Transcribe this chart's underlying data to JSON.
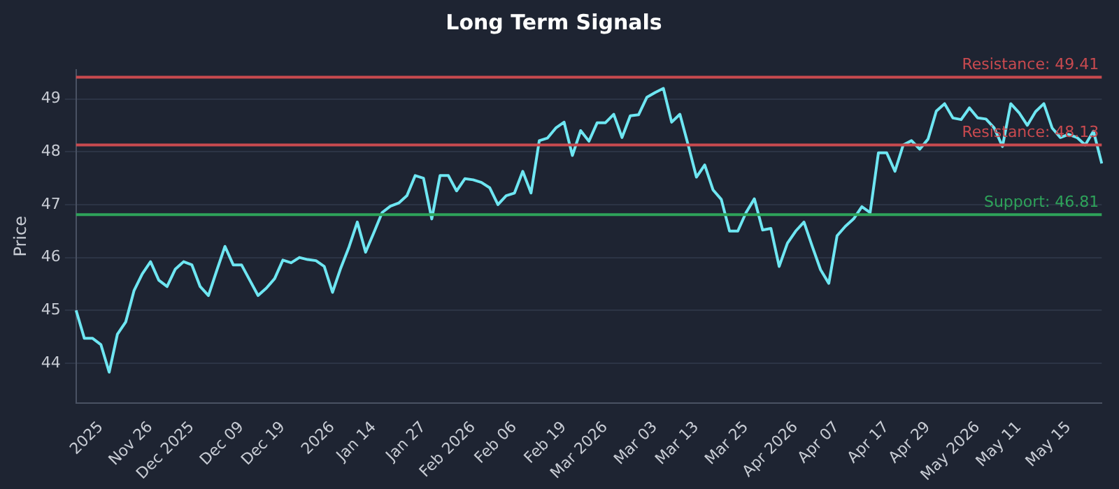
{
  "chart_data": {
    "type": "line",
    "title": "Long Term Signals",
    "ylabel": "Price",
    "categories": [
      null,
      null,
      null,
      "2025",
      null,
      null,
      null,
      null,
      null,
      "Nov 26",
      null,
      null,
      null,
      null,
      "Dec 2025",
      null,
      null,
      null,
      null,
      null,
      "Dec 09",
      null,
      null,
      null,
      null,
      "Dec 19",
      null,
      null,
      null,
      null,
      null,
      "2026",
      null,
      null,
      null,
      null,
      "Jan 14",
      null,
      null,
      null,
      null,
      null,
      "Jan 27",
      null,
      null,
      null,
      null,
      null,
      "Feb 2026",
      null,
      null,
      null,
      null,
      "Feb 06",
      null,
      null,
      null,
      null,
      null,
      "Feb 19",
      null,
      null,
      null,
      null,
      "Mar 2026",
      null,
      null,
      null,
      null,
      null,
      "Mar 03",
      null,
      null,
      null,
      null,
      "Mar 13",
      null,
      null,
      null,
      null,
      null,
      "Mar 25",
      null,
      null,
      null,
      null,
      null,
      "Apr 2026",
      null,
      null,
      null,
      null,
      "Apr 07",
      null,
      null,
      null,
      null,
      null,
      "Apr 17",
      null,
      null,
      null,
      null,
      "Apr 29",
      null,
      null,
      null,
      null,
      null,
      "May 2026",
      null,
      null,
      null,
      null,
      "May 11",
      null,
      null,
      null,
      null,
      null,
      "May 15",
      null,
      null,
      null,
      null
    ],
    "series": [
      {
        "color": "#6ee6f2",
        "values": [
          45.0,
          44.47,
          44.47,
          44.35,
          43.83,
          44.55,
          44.78,
          45.37,
          45.69,
          45.92,
          45.57,
          45.45,
          45.78,
          45.92,
          45.86,
          45.45,
          45.28,
          45.75,
          46.21,
          45.86,
          45.86,
          45.57,
          45.28,
          45.42,
          45.6,
          45.95,
          45.9,
          46.0,
          45.96,
          45.94,
          45.83,
          45.34,
          45.8,
          46.2,
          46.67,
          46.1,
          46.47,
          46.85,
          46.97,
          47.03,
          47.17,
          47.55,
          47.5,
          46.73,
          47.55,
          47.55,
          47.26,
          47.49,
          47.47,
          47.42,
          47.32,
          47.0,
          47.17,
          47.22,
          47.63,
          47.22,
          48.21,
          48.26,
          48.45,
          48.56,
          47.93,
          48.4,
          48.2,
          48.55,
          48.55,
          48.71,
          48.27,
          48.68,
          48.7,
          49.03,
          49.12,
          49.2,
          48.56,
          48.71,
          48.13,
          47.52,
          47.75,
          47.28,
          47.1,
          46.5,
          46.5,
          46.85,
          47.11,
          46.52,
          46.55,
          45.83,
          46.27,
          46.5,
          46.67,
          46.21,
          45.77,
          45.51,
          46.41,
          46.59,
          46.73,
          46.96,
          46.85,
          47.98,
          47.98,
          47.63,
          48.13,
          48.21,
          48.05,
          48.24,
          48.77,
          48.91,
          48.64,
          48.61,
          48.83,
          48.64,
          48.62,
          48.45,
          48.1,
          48.91,
          48.74,
          48.5,
          48.76,
          48.91,
          48.45,
          48.27,
          48.33,
          48.27,
          48.13,
          48.39,
          47.78
        ]
      }
    ],
    "ylim": [
      43.25,
      49.55
    ],
    "yticks": [
      44,
      45,
      46,
      47,
      48,
      49
    ],
    "grid": "y",
    "legend": false,
    "marker": "none",
    "line_style": "solid",
    "ref_lines": [
      {
        "axis": "y",
        "value": 49.41,
        "label": "Resistance: 49.41",
        "color": "#c94a4f"
      },
      {
        "axis": "y",
        "value": 48.13,
        "label": "Resistance: 48.13",
        "color": "#c94a4f"
      },
      {
        "axis": "y",
        "value": 46.81,
        "label": "Support: 46.81",
        "color": "#2ea35a"
      }
    ]
  }
}
